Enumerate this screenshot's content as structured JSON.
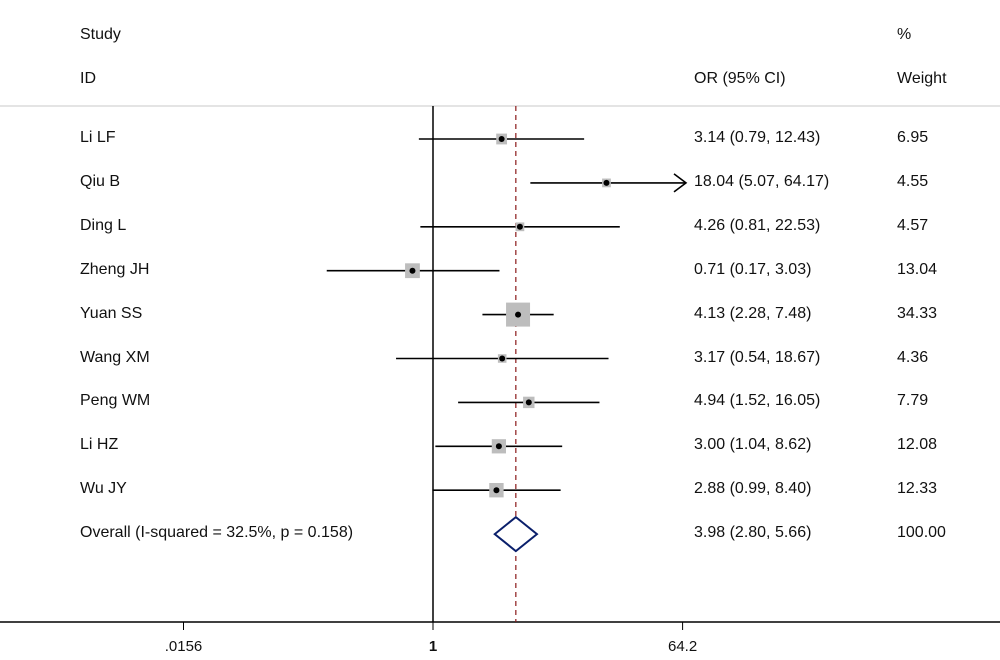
{
  "headers": {
    "study_line1": "Study",
    "study_line2": "ID",
    "ci_header": "OR (95% CI)",
    "weight_line1": "%",
    "weight_line2": "Weight"
  },
  "chart_data": {
    "type": "forest",
    "scale": "log",
    "x_ticks": [
      {
        "value": 0.0156,
        "label": ".0156"
      },
      {
        "value": 1,
        "label": "1"
      },
      {
        "value": 64.2,
        "label": "64.2"
      }
    ],
    "reference_line": 1,
    "overall_line": 3.98,
    "studies": [
      {
        "label": "Li LF",
        "or": 3.14,
        "lo": 0.79,
        "hi": 12.43,
        "ci_text": "3.14 (0.79, 12.43)",
        "weight": 6.95,
        "weight_text": "6.95"
      },
      {
        "label": "Qiu B",
        "or": 18.04,
        "lo": 5.07,
        "hi": 64.17,
        "ci_text": "18.04 (5.07, 64.17)",
        "weight": 4.55,
        "weight_text": "4.55",
        "arrow_right": true
      },
      {
        "label": "Ding L",
        "or": 4.26,
        "lo": 0.81,
        "hi": 22.53,
        "ci_text": "4.26 (0.81, 22.53)",
        "weight": 4.57,
        "weight_text": "4.57"
      },
      {
        "label": "Zheng JH",
        "or": 0.71,
        "lo": 0.17,
        "hi": 3.03,
        "ci_text": "0.71 (0.17, 3.03)",
        "weight": 13.04,
        "weight_text": "13.04"
      },
      {
        "label": "Yuan SS",
        "or": 4.13,
        "lo": 2.28,
        "hi": 7.48,
        "ci_text": "4.13 (2.28, 7.48)",
        "weight": 34.33,
        "weight_text": "34.33"
      },
      {
        "label": "Wang XM",
        "or": 3.17,
        "lo": 0.54,
        "hi": 18.67,
        "ci_text": "3.17 (0.54, 18.67)",
        "weight": 4.36,
        "weight_text": "4.36"
      },
      {
        "label": "Peng WM",
        "or": 4.94,
        "lo": 1.52,
        "hi": 16.05,
        "ci_text": "4.94 (1.52, 16.05)",
        "weight": 7.79,
        "weight_text": "7.79"
      },
      {
        "label": "Li HZ",
        "or": 3.0,
        "lo": 1.04,
        "hi": 8.62,
        "ci_text": "3.00 (1.04, 8.62)",
        "weight": 12.08,
        "weight_text": "12.08"
      },
      {
        "label": "Wu JY",
        "or": 2.88,
        "lo": 0.99,
        "hi": 8.4,
        "ci_text": "2.88 (0.99, 8.40)",
        "weight": 12.33,
        "weight_text": "12.33"
      }
    ],
    "overall": {
      "label": "Overall  (I-squared = 32.5%, p = 0.158)",
      "or": 3.98,
      "lo": 2.8,
      "hi": 5.66,
      "ci_text": "3.98 (2.80, 5.66)",
      "weight_text": "100.00"
    },
    "colors": {
      "ci_line": "#000000",
      "weight_box": "#bdbdbd",
      "point": "#000000",
      "reference_line": "#000000",
      "overall_line": "#8b1a1a",
      "diamond": "#0a1f6b",
      "separator": "#c8c8c8"
    }
  }
}
